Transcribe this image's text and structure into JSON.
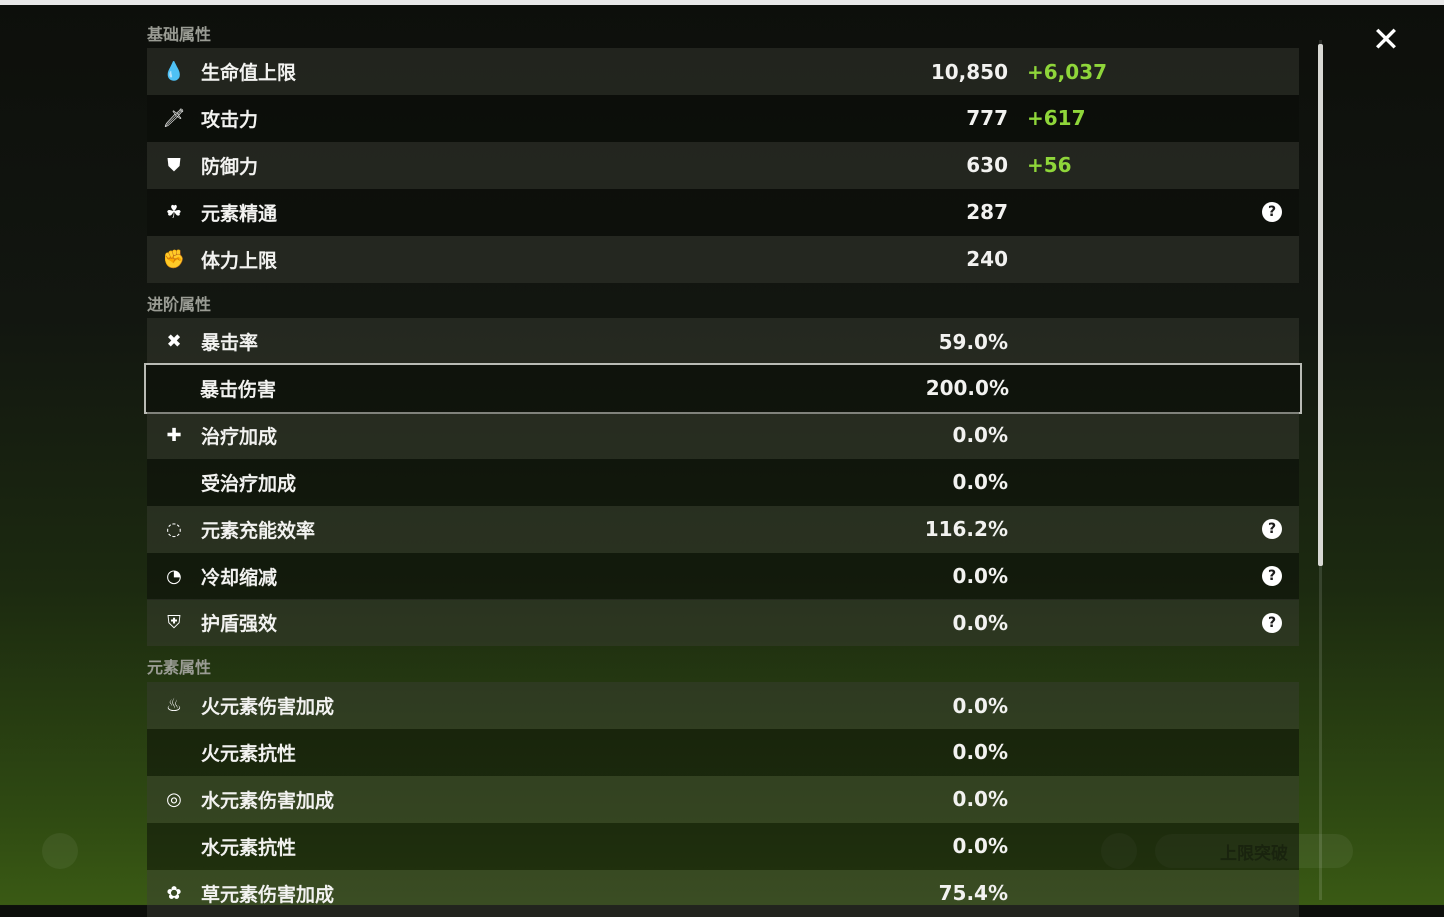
{
  "sections": [
    {
      "title": "基础属性",
      "rows": [
        {
          "icon": "hp-drop-icon",
          "glyph": "💧",
          "label": "生命值上限",
          "value": "10,850",
          "bonus": "+6,037"
        },
        {
          "icon": "sword-icon",
          "glyph": "🗡",
          "label": "攻击力",
          "value": "777",
          "bonus": "+617"
        },
        {
          "icon": "shield-icon",
          "glyph": "⛊",
          "label": "防御力",
          "value": "630",
          "bonus": "+56"
        },
        {
          "icon": "elemental-mastery-icon",
          "glyph": "☘",
          "label": "元素精通",
          "value": "287",
          "help": true
        },
        {
          "icon": "stamina-icon",
          "glyph": "✊",
          "label": "体力上限",
          "value": "240"
        }
      ]
    },
    {
      "title": "进阶属性",
      "rows": [
        {
          "icon": "crit-rate-icon",
          "glyph": "✖",
          "label": "暴击率",
          "value": "59.0%"
        },
        {
          "icon": "crit-dmg-icon",
          "glyph": "",
          "label": "暴击伤害",
          "value": "200.0%",
          "selected": true
        },
        {
          "icon": "healing-cross-icon",
          "glyph": "✚",
          "label": "治疗加成",
          "value": "0.0%"
        },
        {
          "icon": "",
          "glyph": "",
          "label": "受治疗加成",
          "value": "0.0%"
        },
        {
          "icon": "energy-recharge-icon",
          "glyph": "◌",
          "label": "元素充能效率",
          "value": "116.2%",
          "help": true
        },
        {
          "icon": "cooldown-icon",
          "glyph": "◔",
          "label": "冷却缩减",
          "value": "0.0%",
          "help": true
        },
        {
          "icon": "shield-strength-icon",
          "glyph": "⛨",
          "label": "护盾强效",
          "value": "0.0%",
          "help": true
        }
      ]
    },
    {
      "title": "元素属性",
      "rows": [
        {
          "icon": "pyro-icon",
          "glyph": "♨",
          "label": "火元素伤害加成",
          "value": "0.0%"
        },
        {
          "icon": "",
          "glyph": "",
          "label": "火元素抗性",
          "value": "0.0%"
        },
        {
          "icon": "hydro-icon",
          "glyph": "◎",
          "label": "水元素伤害加成",
          "value": "0.0%"
        },
        {
          "icon": "",
          "glyph": "",
          "label": "水元素抗性",
          "value": "0.0%"
        },
        {
          "icon": "dendro-icon",
          "glyph": "✿",
          "label": "草元素伤害加成",
          "value": "75.4%"
        }
      ]
    }
  ],
  "background": {
    "ascend_button": "上限突破"
  },
  "colors": {
    "bonus": "#8fd63a",
    "selected_border": "#b9bbb5"
  }
}
